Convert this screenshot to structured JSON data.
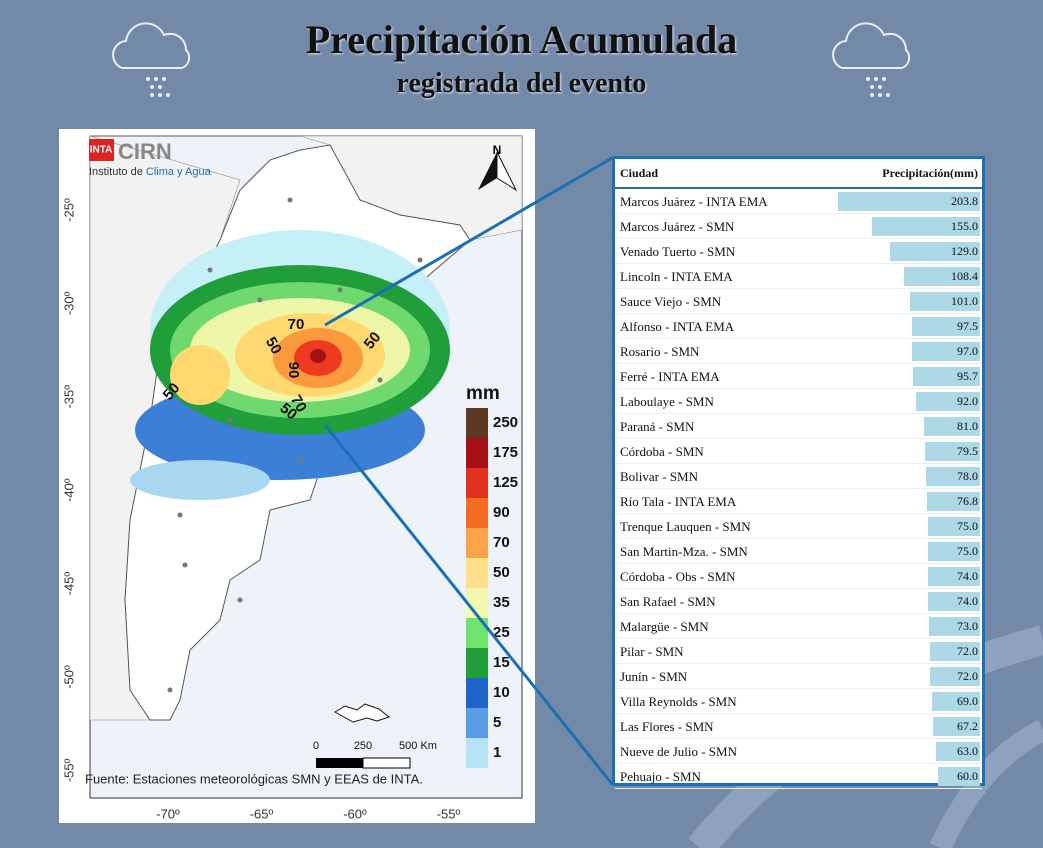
{
  "header": {
    "title": "Precipitación Acumulada",
    "subtitle": "registrada del evento"
  },
  "map": {
    "logo": {
      "inta": "INTA",
      "cirn": "CIRN",
      "institute_prefix": "Instituto de ",
      "institute_highlight": "Clima y Agua"
    },
    "north": "N",
    "lat_labels": [
      "-25º",
      "-30º",
      "-35º",
      "-40º",
      "-45º",
      "-50º",
      "-55º"
    ],
    "lon_labels": [
      "-70º",
      "-65º",
      "-60º",
      "-55º"
    ],
    "contour_labels": [
      "70",
      "50",
      "50",
      "90",
      "70",
      "50",
      "50"
    ],
    "legend": {
      "title": "mm",
      "labels": [
        "250",
        "175",
        "125",
        "90",
        "70",
        "50",
        "35",
        "25",
        "15",
        "10",
        "5",
        "1"
      ]
    },
    "scale_labels": [
      "0",
      "250",
      "500 Km"
    ],
    "source": "Fuente: Estaciones meteorológicas SMN y EEAS de INTA."
  },
  "table": {
    "columns": [
      "Ciudad",
      "Precipitación(mm)"
    ],
    "rows": [
      [
        "Marcos Juárez - INTA EMA",
        "203.8"
      ],
      [
        "Marcos Juárez - SMN",
        "155.0"
      ],
      [
        "Venado Tuerto - SMN",
        "129.0"
      ],
      [
        "Lincoln - INTA EMA",
        "108.4"
      ],
      [
        "Sauce Viejo - SMN",
        "101.0"
      ],
      [
        "Alfonso - INTA EMA",
        "97.5"
      ],
      [
        "Rosario - SMN",
        "97.0"
      ],
      [
        "Ferré - INTA EMA",
        "95.7"
      ],
      [
        "Laboulaye - SMN",
        "92.0"
      ],
      [
        "Paraná - SMN",
        "81.0"
      ],
      [
        "Córdoba - SMN",
        "79.5"
      ],
      [
        "Bolivar - SMN",
        "78.0"
      ],
      [
        "Río Tala - INTA EMA",
        "76.8"
      ],
      [
        "Trenque Lauquen - SMN",
        "75.0"
      ],
      [
        "San Martin-Mza. - SMN",
        "75.0"
      ],
      [
        "Córdoba - Obs - SMN",
        "74.0"
      ],
      [
        "San Rafael - SMN",
        "74.0"
      ],
      [
        "Malargüe - SMN",
        "73.0"
      ],
      [
        "Pilar - SMN",
        "72.0"
      ],
      [
        "Junín - SMN",
        "72.0"
      ],
      [
        "Villa Reynolds - SMN",
        "69.0"
      ],
      [
        "Las Flores - SMN",
        "67.2"
      ],
      [
        "Nueve de Julio - SMN",
        "63.0"
      ],
      [
        "Pehuajo - SMN",
        "60.0"
      ]
    ]
  }
}
